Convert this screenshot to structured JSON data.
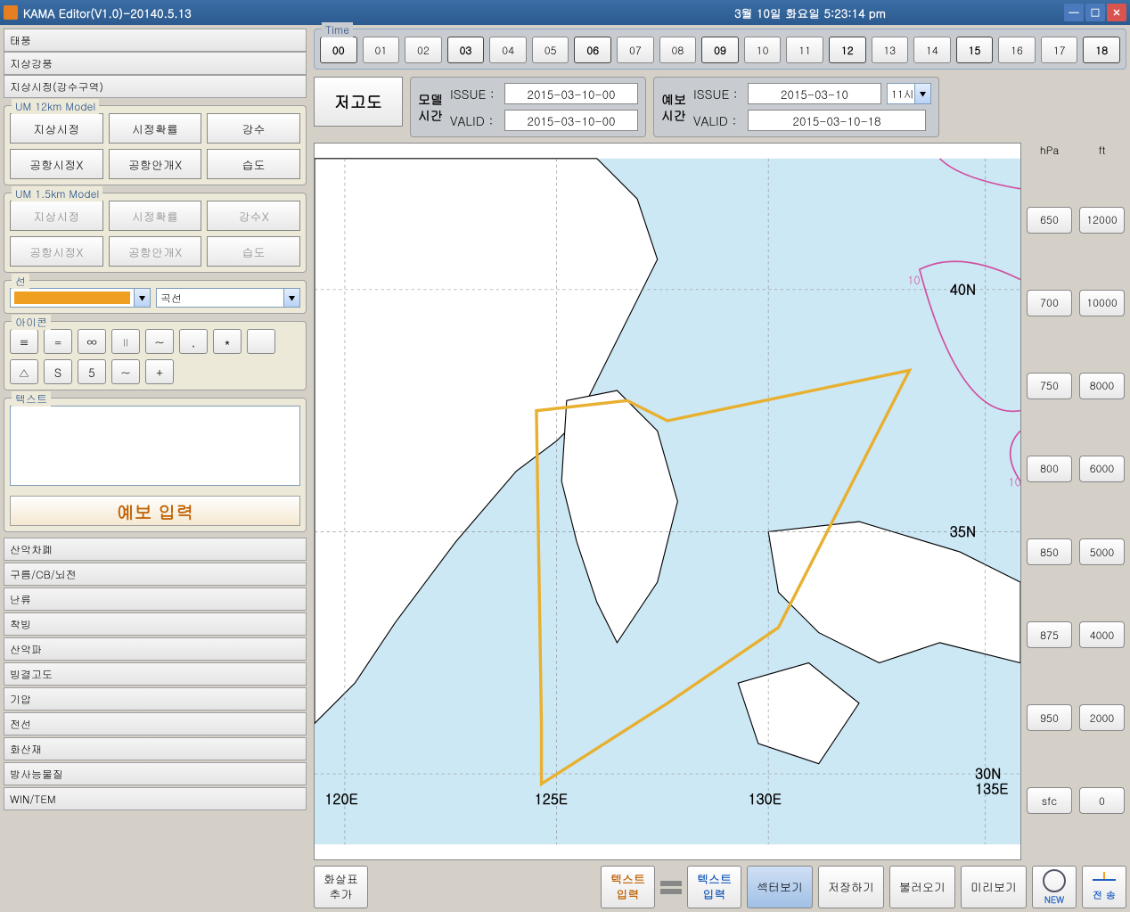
{
  "window": {
    "title": "KAMA Editor(V1.0)-20140.5.13",
    "datetime": "3월 10일  화요일  5:23:14 pm"
  },
  "left": {
    "top_tabs": [
      "태풍",
      "지상강풍",
      "지상시정(강수구역)"
    ],
    "model_12km": {
      "title": "UM 12km Model",
      "buttons": [
        "지상시정",
        "시정확률",
        "강수",
        "공항시정X",
        "공항안개X",
        "습도"
      ]
    },
    "model_15km": {
      "title": "UM 1.5km Model",
      "buttons": [
        "지상시정",
        "시정확률",
        "강수X",
        "공항시정X",
        "공항안개X",
        "습도"
      ]
    },
    "line_group": {
      "title": "선",
      "curve": "곡선",
      "swatch_color": "#f0a020"
    },
    "icon_group": {
      "title": "아이콘",
      "icons": [
        "≡",
        "=",
        "∞",
        "∥",
        "~",
        ",",
        "*",
        "",
        "△",
        "S",
        "5",
        "~",
        "+"
      ]
    },
    "text_group": {
      "title": "텍스트"
    },
    "forecast_btn": "예보 입력",
    "bottom_tabs": [
      "산악차폐",
      "구름/CB/뇌전",
      "난류",
      "착빙",
      "산악파",
      "빙결고도",
      "기압",
      "전선",
      "화산재",
      "방사능물질",
      "WIN/TEM"
    ]
  },
  "time": {
    "title": "Time",
    "hours": [
      "00",
      "01",
      "02",
      "03",
      "04",
      "05",
      "06",
      "07",
      "08",
      "09",
      "10",
      "11",
      "12",
      "13",
      "14",
      "15",
      "16",
      "17",
      "18"
    ],
    "bold": [
      "00",
      "03",
      "06",
      "09",
      "12",
      "15",
      "18"
    ]
  },
  "info": {
    "alt_btn": "저고도",
    "model_label": "모델\n시간",
    "forecast_label": "예보\n시간",
    "issue_key": "ISSUE :",
    "valid_key": "VALID :",
    "model_issue": "2015-03-10-00",
    "model_valid": "2015-03-10-00",
    "fc_issue": "2015-03-10",
    "fc_valid": "2015-03-10-18",
    "hour_sel": "11시"
  },
  "altitude": {
    "hpa_header": "hPa",
    "ft_header": "ft",
    "hpa": [
      "650",
      "700",
      "750",
      "800",
      "850",
      "875",
      "950",
      "sfc"
    ],
    "ft": [
      "12000",
      "10000",
      "8000",
      "6000",
      "5000",
      "4000",
      "2000",
      "0"
    ]
  },
  "bottom": {
    "arrow": "화살표\n추가",
    "text1": "텍스트\n입력",
    "text2": "텍스트\n입력",
    "sector": "섹터보기",
    "save": "저장하기",
    "load": "불러오기",
    "preview": "미리보기",
    "new": "NEW",
    "send": "전 송"
  },
  "map": {
    "water_color": "#cde8f5",
    "land_color": "#ffffff",
    "grid_color": "#808080",
    "polygon_color": "#e8b030",
    "contour_color": "#d050a0",
    "lon_labels": [
      "120E",
      "125E",
      "130E",
      "135E"
    ],
    "lat_labels": [
      "30N",
      "35N",
      "40N"
    ]
  }
}
